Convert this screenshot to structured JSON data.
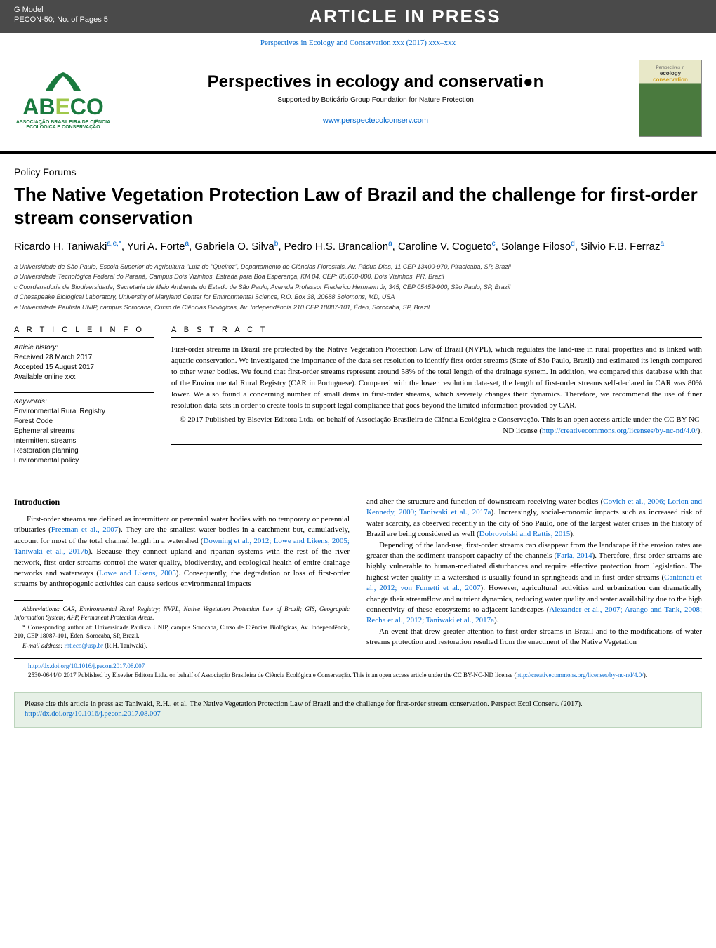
{
  "topbar": {
    "gmodel": "G Model",
    "ref": "PECON-50;   No. of Pages 5",
    "banner": "ARTICLE IN PRESS"
  },
  "journal_link": "Perspectives in Ecology and Conservation xxx  (2017) xxx–xxx",
  "logo": {
    "ab": "AB",
    "line1": "ASSOCIAÇÃO BRASILEIRA DE CIÊNCIA",
    "line2": "ECOLÓGICA E CONSERVAÇÃO"
  },
  "header": {
    "journal_title": "Perspectives in ecology and conservati●n",
    "subtitle": "Supported by Boticário Group Foundation for Nature Protection",
    "url": "www.perspectecolconserv.com"
  },
  "cover": {
    "line1": "ecology",
    "line2": "conservation",
    "pre": "Perspectives in"
  },
  "article": {
    "section_type": "Policy Forums",
    "title": "The Native Vegetation Protection Law of Brazil and the challenge for first-order stream conservation",
    "authors_html": "Ricardo H. Taniwaki<sup>a,e,*</sup>,  Yuri A. Forte<sup>a</sup>,  Gabriela O. Silva<sup>b</sup>,  Pedro H.S. Brancalion<sup>a</sup>,  Caroline V. Cogueto<sup>c</sup>,  Solange Filoso<sup>d</sup>,  Silvio F.B. Ferraz<sup>a</sup>"
  },
  "affiliations": [
    "a Universidade de São Paulo, Escola Superior de Agricultura \"Luiz de \"Queiroz\", Departamento de Ciências Florestais, Av. Pádua Dias, 11 CEP 13400-970, Piracicaba, SP, Brazil",
    "b Universidade Tecnológica Federal do Paraná, Campus Dois Vizinhos, Estrada para Boa Esperança, KM 04, CEP: 85.660-000, Dois Vizinhos, PR, Brazil",
    "c Coordenadoria de Biodiversidade, Secretaria de Meio Ambiente do Estado de São Paulo, Avenida Professor Frederico Hermann Jr, 345, CEP 05459-900, São Paulo, SP, Brazil",
    "d Chesapeake Biological Laboratory, University of Maryland Center for Environmental Science, P.O. Box 38, 20688 Solomons, MD, USA",
    "e Universidade Paulista UNIP, campus Sorocaba, Curso de Ciências Biológicas, Av. Independência 210 CEP 18087-101, Éden, Sorocaba, SP, Brazil"
  ],
  "info": {
    "heading": "A R T I C L E    I N F O",
    "history_title": "Article history:",
    "received": "Received 28 March 2017",
    "accepted": "Accepted 15 August 2017",
    "online": "Available online xxx",
    "keywords_title": "Keywords:",
    "keywords": [
      "Environmental Rural Registry",
      "Forest Code",
      "Ephemeral streams",
      "Intermittent streams",
      "Restoration planning",
      "Environmental policy"
    ]
  },
  "abstract": {
    "heading": "A B S T R A C T",
    "text": "First-order streams in Brazil are protected by the Native Vegetation Protection Law of Brazil (NVPL), which regulates the land-use in rural properties and is linked with aquatic conservation. We investigated the importance of the data-set resolution to identify first-order streams (State of São Paulo, Brazil) and estimated its length compared to other water bodies. We found that first-order streams represent around 58% of the total length of the drainage system. In addition, we compared this database with that of the Environmental Rural Registry (CAR in Portuguese). Compared with the lower resolution data-set, the length of first-order streams self-declared in CAR was 80% lower. We also found a concerning number of small dams in first-order streams, which severely changes their dynamics. Therefore, we recommend the use of finer resolution data-sets in order to create tools to support legal compliance that goes beyond the limited information provided by CAR.",
    "copyright": "© 2017 Published by Elsevier Editora Ltda. on behalf of Associação Brasileira de Ciência Ecológica e Conservação. This is an open access article under the CC BY-NC-ND license (",
    "license_url": "http://creativecommons.org/licenses/by-nc-nd/4.0/",
    "license_close": ")."
  },
  "body": {
    "intro_heading": "Introduction",
    "p1a": "First-order streams are defined as intermittent or perennial water bodies with no temporary or perennial tributaries (",
    "p1_link1": "Freeman et al., 2007",
    "p1b": "). They are the smallest water bodies in a catchment but, cumulatively, account for most of the total channel length in a watershed (",
    "p1_link2": "Downing et al., 2012; Lowe and Likens, 2005; Taniwaki et al., 2017b",
    "p1c": "). Because they connect upland and riparian systems with the rest of the river network, first-order streams control the water quality, biodiversity, and ecological health of entire drainage networks and waterways (",
    "p1_link3": "Lowe and Likens, 2005",
    "p1d": "). Consequently, the degradation or loss of first-order streams by anthropogenic activities can cause serious environmental impacts",
    "p2a": "and alter the structure and function of downstream receiving water bodies (",
    "p2_link1": "Covich et al., 2006; Lorion and Kennedy, 2009; Taniwaki et al., 2017a",
    "p2b": "). Increasingly, social-economic impacts such as increased risk of water scarcity, as observed recently in the city of São Paulo, one of the largest water crises in the history of Brazil are being considered as well (",
    "p2_link2": "Dobrovolski and Rattis, 2015",
    "p2c": ").",
    "p3a": "Depending of the land-use, first-order streams can disappear from the landscape if the erosion rates are greater than the sediment transport capacity of the channels (",
    "p3_link1": "Faria, 2014",
    "p3b": "). Therefore, first-order streams are highly vulnerable to human-mediated disturbances and require effective protection from legislation. The highest water quality in a watershed is usually found in springheads and in first-order streams (",
    "p3_link2": "Cantonati et al., 2012; von Fumetti et al., 2007",
    "p3c": "). However, agricultural activities and urbanization can dramatically change their streamflow and nutrient dynamics, reducing water quality and water availability due to the high connectivity of these ecosystems to adjacent landscapes (",
    "p3_link3": "Alexander et al., 2007; Arango and Tank, 2008; Recha et al., 2012; Taniwaki et al., 2017a",
    "p3d": ").",
    "p4": "An event that drew greater attention to first-order streams in Brazil and to the modifications of water streams protection and restoration resulted from the enactment of the Native Vegetation"
  },
  "footnotes": {
    "abbrev": "Abbreviations:  CAR, Environmental Rural Registry; NVPL, Native Vegetation Protection Law of Brazil; GIS, Geographic Information System; APP, Permanent Protection Areas.",
    "corresp": "* Corresponding author at: Universidade Paulista UNIP, campus Sorocaba, Curso de Ciências Biológicas, Av. Independência, 210, CEP 18087-101, Éden, Sorocaba, SP, Brazil.",
    "email_label": "E-mail address: ",
    "email": "rht.eco@usp.br",
    "email_suffix": " (R.H. Taniwaki)."
  },
  "doi": {
    "url": "http://dx.doi.org/10.1016/j.pecon.2017.08.007",
    "line": "2530-0644/© 2017 Published by Elsevier Editora Ltda. on behalf of Associação Brasileira de Ciência Ecológica e Conservação. This is an open access article under the CC BY-NC-ND license (",
    "license_url": "http://creativecommons.org/licenses/by-nc-nd/4.0/",
    "close": ")."
  },
  "citebox": {
    "text": "Please cite this article in press as: Taniwaki, R.H., et al. The Native Vegetation Protection Law of Brazil and the challenge for first-order stream conservation. Perspect Ecol Conserv. (2017). ",
    "url": "http://dx.doi.org/10.1016/j.pecon.2017.08.007"
  },
  "colors": {
    "topbar_bg": "#4a4a4a",
    "link": "#0066cc",
    "logo_green": "#1a7a3e",
    "citebox_bg": "#e6f0e6",
    "citebox_border": "#bcd4bc"
  }
}
